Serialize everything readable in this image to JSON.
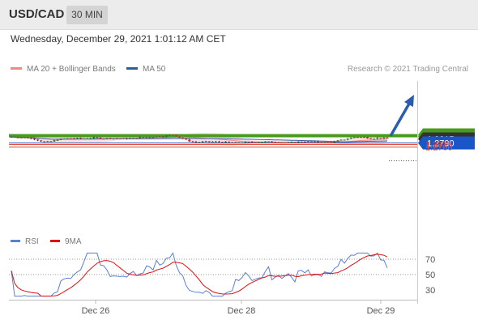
{
  "header": {
    "pair": "USD/CAD",
    "timeframe": "30 MIN"
  },
  "datetime": "Wednesday, December 29, 2021 1:01:12 AM CET",
  "legend": {
    "ma20": "MA 20 + Bollinger Bands",
    "ma50": "MA 50",
    "ma20_color": "#f08a80",
    "ma50_color": "#2f5e9e"
  },
  "copyright": "Research © 2021 Trading Central",
  "price_levels": [
    {
      "label": "1.2845",
      "value": 1.2845,
      "color": "#4a9a1c",
      "kind": "resistance"
    },
    {
      "label": "1.2830",
      "value": 1.283,
      "color": "#4a9a1c",
      "kind": "resistance"
    },
    {
      "label": "1.2815",
      "value": 1.2815,
      "color": "#333333",
      "kind": "current"
    },
    {
      "label": "1.2790",
      "value": 1.279,
      "color": "#1a56c8",
      "kind": "support"
    },
    {
      "label": "1.2775",
      "value": 1.2775,
      "color": "#e04a3a",
      "kind": "support"
    },
    {
      "label": "1.2760",
      "value": 1.276,
      "color": "#e04a3a",
      "kind": "support"
    }
  ],
  "rsi_legend": {
    "rsi": "RSI",
    "ma": "9MA",
    "rsi_color": "#5a7fd6",
    "ma_color": "#e01010"
  },
  "rsi_levels": [
    "70",
    "50",
    "30"
  ],
  "x_labels": [
    "Dec 26",
    "Dec 28",
    "Dec 29"
  ],
  "colors": {
    "bull": "#2e7d2e",
    "bear": "#c0392b",
    "band_fill": "#fbdcdc",
    "arrow": "#2a5db0"
  },
  "chart_data": {
    "type": "candlestick",
    "price_range": [
      1.2755,
      1.2855
    ],
    "close_series_approx": [
      1.2826,
      1.2824,
      1.282,
      1.2812,
      1.2795,
      1.2792,
      1.2808,
      1.2815,
      1.2818,
      1.2814,
      1.2818,
      1.282,
      1.2816,
      1.2817,
      1.2815,
      1.2814,
      1.2817,
      1.2823,
      1.2825,
      1.2828,
      1.2832,
      1.2842,
      1.2822,
      1.28,
      1.279,
      1.2792,
      1.2794,
      1.2792,
      1.279,
      1.2785,
      1.2789,
      1.279,
      1.2792,
      1.2793,
      1.2791,
      1.2789,
      1.2784,
      1.279,
      1.2795,
      1.2793,
      1.279,
      1.2786,
      1.2792,
      1.2804,
      1.2816,
      1.2827,
      1.2822,
      1.2816,
      1.2818,
      1.2815
    ]
  }
}
